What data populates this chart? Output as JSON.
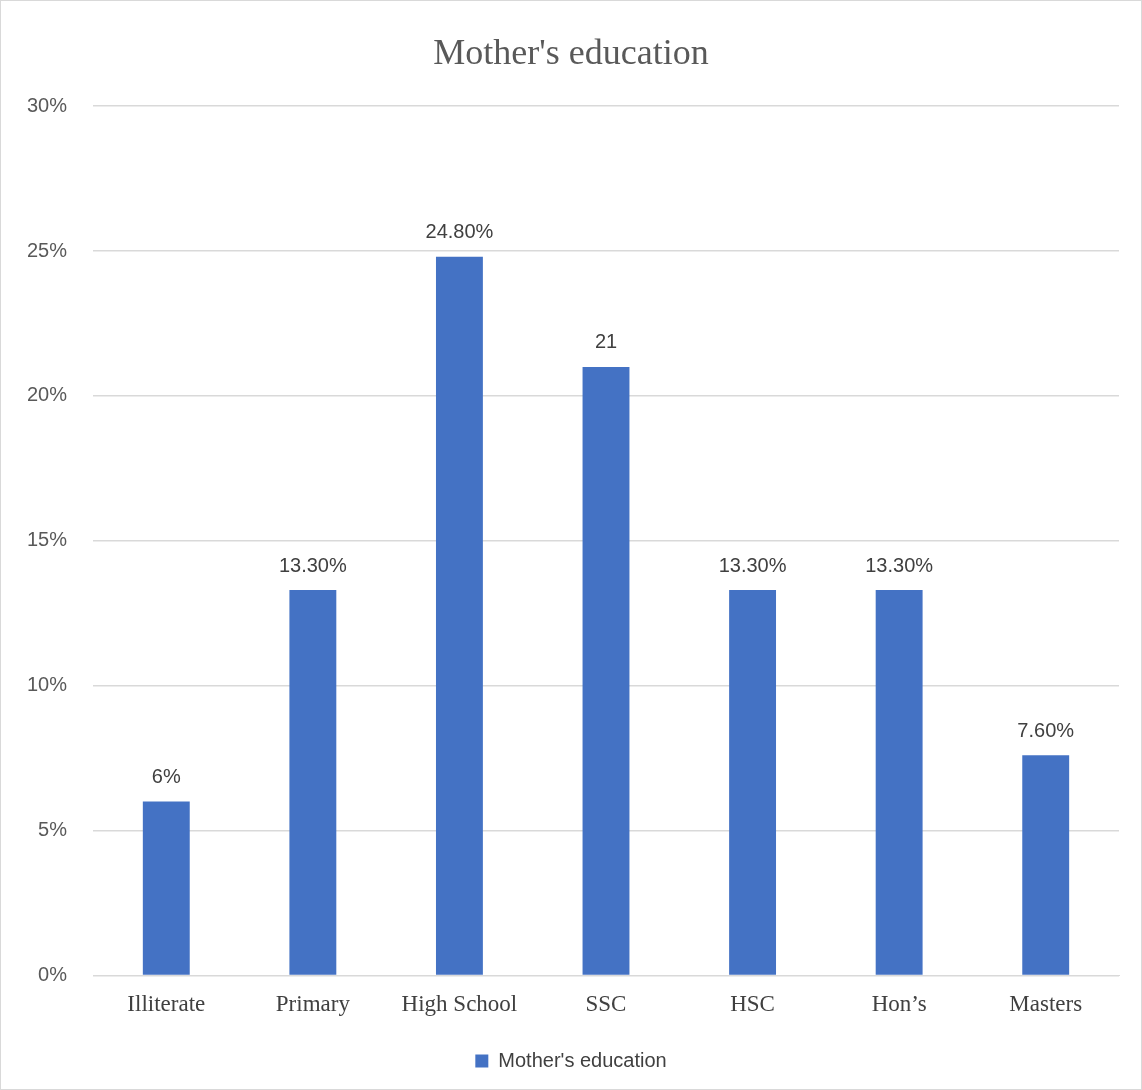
{
  "chart_data": {
    "type": "bar",
    "title": "Mother's education",
    "categories": [
      "Illiterate",
      "Primary",
      "High School",
      "SSC",
      "HSC",
      "Hon’s",
      "Masters"
    ],
    "series": [
      {
        "name": "Mother's education",
        "color": "#4472c4",
        "values": [
          6,
          13.3,
          24.8,
          21,
          13.3,
          13.3,
          7.6
        ],
        "value_labels": [
          "6%",
          "13.30%",
          "24.80%",
          "21",
          "13.30%",
          "13.30%",
          "7.60%"
        ]
      }
    ],
    "ylim": [
      0,
      30
    ],
    "yticks": [
      {
        "value": 0,
        "label": "0%"
      },
      {
        "value": 5,
        "label": "5%"
      },
      {
        "value": 10,
        "label": "10%"
      },
      {
        "value": 15,
        "label": "15%"
      },
      {
        "value": 20,
        "label": "20%"
      },
      {
        "value": 25,
        "label": "25%"
      },
      {
        "value": 30,
        "label": "30%"
      }
    ],
    "grid": "y",
    "legend": "bottom"
  }
}
